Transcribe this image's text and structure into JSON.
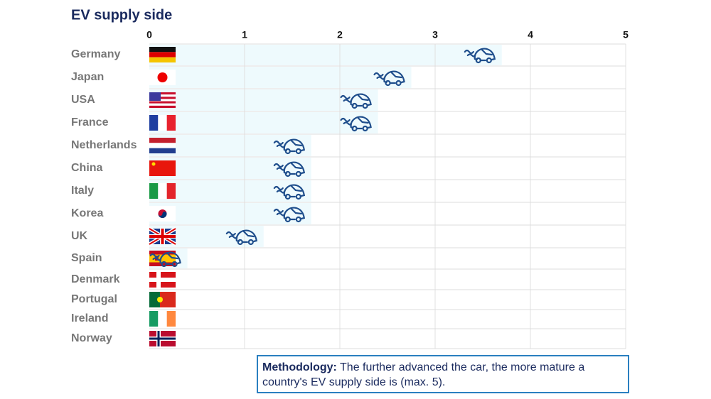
{
  "chart_data": {
    "type": "bar",
    "orientation": "horizontal",
    "title": "EV  supply side",
    "categories": [
      "Germany",
      "Japan",
      "USA",
      "France",
      "Netherlands",
      "China",
      "Italy",
      "Korea",
      "UK",
      "Spain",
      "Denmark",
      "Portugal",
      "Ireland",
      "Norway"
    ],
    "values": [
      3.7,
      2.75,
      2.4,
      2.4,
      1.7,
      1.7,
      1.7,
      1.7,
      1.2,
      0.4,
      0,
      0,
      0,
      0
    ],
    "color": "#eefafd",
    "marker_color": "#1f4e8c",
    "xlim": [
      0,
      5
    ],
    "xticks": [
      0,
      1,
      2,
      3,
      4,
      5
    ],
    "grid": true,
    "note_label": "Methodology:",
    "note": "The further advanced the car, the more mature a country's EV supply side is (max. 5)."
  }
}
